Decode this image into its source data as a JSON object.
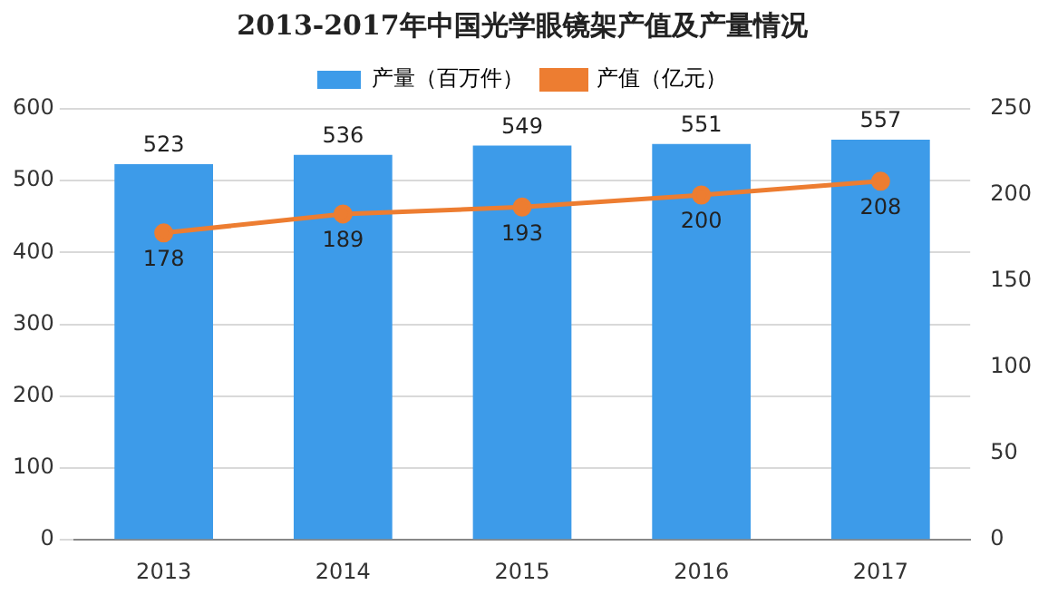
{
  "chart_data": {
    "type": "bar",
    "title": "2013-2017年中国光学眼镜架产值及产量情况",
    "categories": [
      "2013",
      "2014",
      "2015",
      "2016",
      "2017"
    ],
    "series": [
      {
        "name": "产量（百万件）",
        "color": "#3d9be9",
        "values": [
          523,
          536,
          549,
          551,
          557
        ]
      },
      {
        "name": "产值（亿元）",
        "type": "line",
        "axis": "y2",
        "color": "#ed7d31",
        "values": [
          178,
          189,
          193,
          200,
          208
        ],
        "marker": "circle"
      }
    ],
    "ylim": [
      0,
      600
    ],
    "yticks": [
      0,
      100,
      200,
      300,
      400,
      500,
      600
    ],
    "y2lim": [
      0,
      250
    ],
    "y2ticks": [
      0,
      50,
      100,
      150,
      200,
      250
    ],
    "grid": "y",
    "legend": "top",
    "data_labels": true
  }
}
